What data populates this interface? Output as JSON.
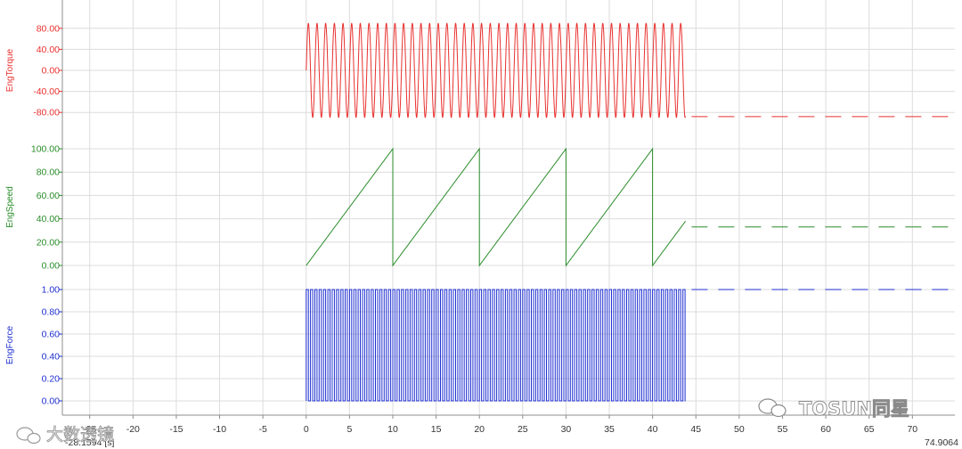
{
  "chart_data": {
    "type": "line",
    "x_unit": "[s]",
    "x_view": [
      -28.1594,
      74.9064
    ],
    "x_start_label": "-28.1594",
    "x_end_label": "74.9064",
    "x_ticks": [
      -25,
      -20,
      -15,
      -10,
      -5,
      0,
      5,
      10,
      15,
      20,
      25,
      30,
      35,
      40,
      45,
      50,
      55,
      60,
      65,
      70
    ],
    "grid": true,
    "series": [
      {
        "name": "EngTorque",
        "color": "#e8312f",
        "yticks": [
          -80,
          -40,
          0,
          40,
          80
        ],
        "ylim": [
          -100,
          100
        ],
        "signal": "sine",
        "amplitude": 90,
        "period_s": 1.0,
        "x_range": [
          0,
          43.8
        ],
        "hold_value": -88,
        "hold_range": [
          44.5,
          74.9
        ]
      },
      {
        "name": "EngSpeed",
        "color": "#2a8c2a",
        "yticks": [
          0,
          20,
          40,
          60,
          80,
          100
        ],
        "ylim": [
          0,
          100
        ],
        "signal": "sawtooth",
        "min": 0,
        "max": 100,
        "period_s": 10.0,
        "x_range": [
          0,
          43.8
        ],
        "hold_value": 33,
        "hold_range": [
          44.5,
          74.9
        ]
      },
      {
        "name": "EngForce",
        "color": "#1e2fd0",
        "yticks": [
          0,
          0.2,
          0.4,
          0.6,
          0.8,
          1.0
        ],
        "ylim": [
          0,
          1
        ],
        "signal": "square",
        "min": 0,
        "max": 1,
        "period_s": 0.5,
        "x_range": [
          0,
          43.8
        ],
        "hold_value": 1.0,
        "hold_range": [
          44.5,
          74.9
        ]
      }
    ]
  },
  "watermarks": {
    "left": "大数透镜",
    "right": "TOSUN同星"
  }
}
